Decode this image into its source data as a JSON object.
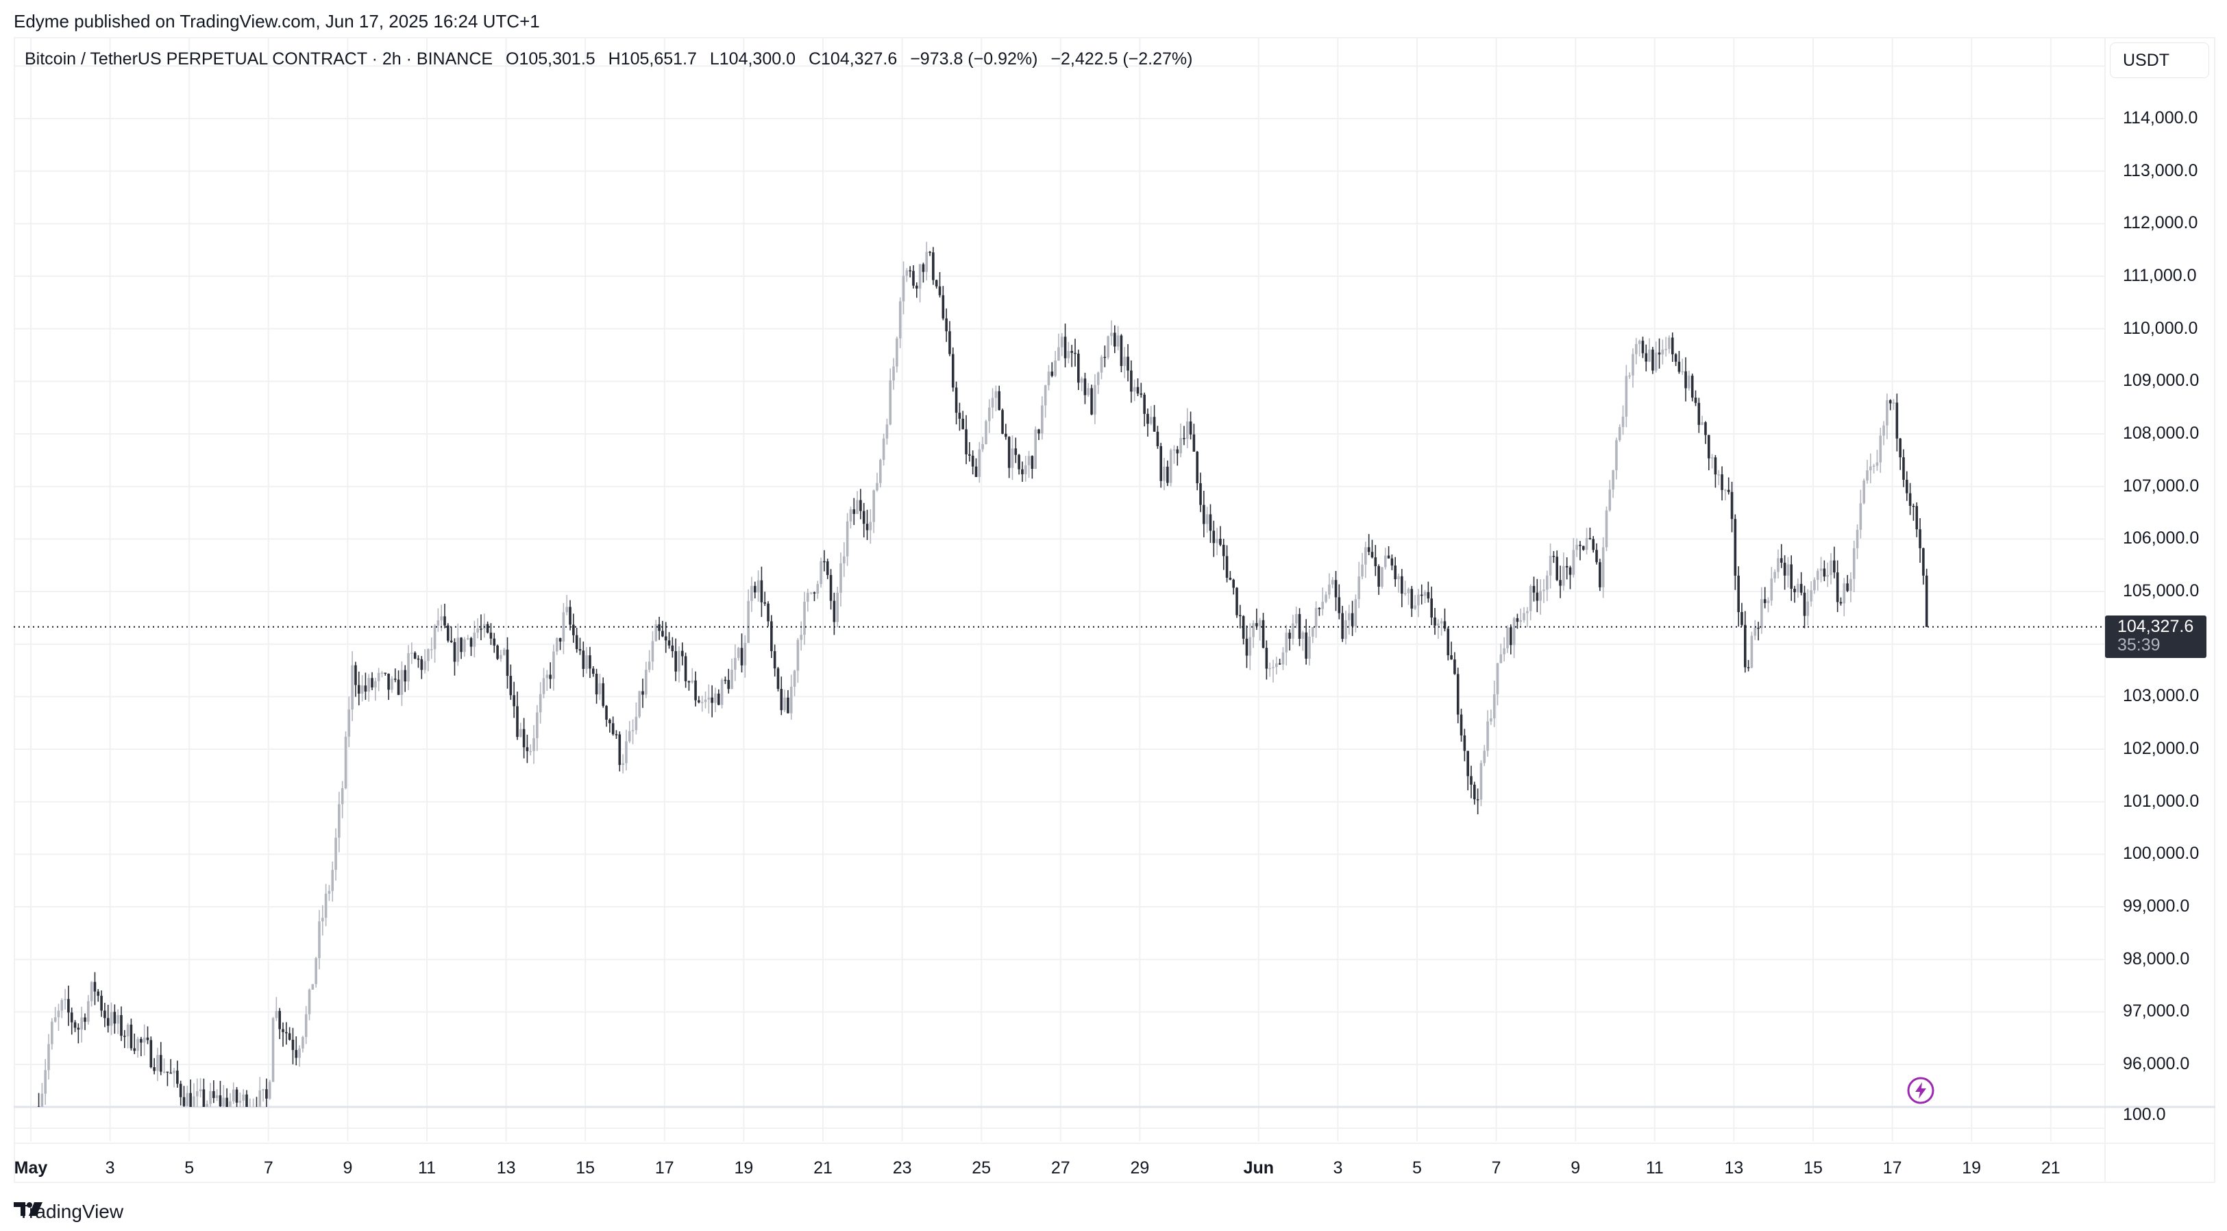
{
  "publisher": "Edyme published on TradingView.com, Jun 17, 2025 16:24 UTC+1",
  "legend": {
    "symbol": "Bitcoin / TetherUS PERPETUAL CONTRACT · 2h · BINANCE",
    "open": "O105,301.5",
    "high": "H105,651.7",
    "low": "L104,300.0",
    "close": "C104,327.6",
    "change": "−973.8 (−0.92%)",
    "change_extra": "−2,422.5 (−2.27%)"
  },
  "currency": "USDT",
  "price_axis": {
    "labels": [
      "114,000.0",
      "113,000.0",
      "112,000.0",
      "111,000.0",
      "110,000.0",
      "109,000.0",
      "108,000.0",
      "107,000.0",
      "106,000.0",
      "105,000.0",
      "103,000.0",
      "102,000.0",
      "101,000.0",
      "100,000.0",
      "99,000.0",
      "98,000.0",
      "97,000.0",
      "96,000.0"
    ],
    "values": [
      114000,
      113000,
      112000,
      111000,
      110000,
      109000,
      108000,
      107000,
      106000,
      105000,
      103000,
      102000,
      101000,
      100000,
      99000,
      98000,
      97000,
      96000
    ],
    "last_price": "104,327.6",
    "countdown": "35:39",
    "lower_pane_label": "100.0"
  },
  "time_axis": {
    "labels": [
      "May",
      "3",
      "5",
      "7",
      "9",
      "11",
      "13",
      "15",
      "17",
      "19",
      "21",
      "23",
      "25",
      "27",
      "29",
      "Jun",
      "3",
      "5",
      "7",
      "9",
      "11",
      "13",
      "15",
      "17",
      "19",
      "21"
    ],
    "day_offsets": [
      0,
      2,
      4,
      6,
      8,
      10,
      12,
      14,
      16,
      18,
      20,
      22,
      24,
      26,
      28,
      31,
      33,
      35,
      37,
      39,
      41,
      43,
      45,
      47,
      49,
      51
    ],
    "month_labels": [
      "May",
      "Jun"
    ]
  },
  "footer": {
    "brand": "TradingView"
  },
  "icons": {
    "lightning": "lightning-icon",
    "logo": "tradingview-logo-icon"
  },
  "colors": {
    "up": "#b2b5be",
    "down": "#2a2e39",
    "grid": "#f0f1f3",
    "accent_purple": "#9c27b0",
    "price_tag_bg": "#2a2e39"
  },
  "chart_data": {
    "type": "candlestick",
    "title": "Bitcoin / TetherUS PERPETUAL CONTRACT · 2h · BINANCE",
    "xlabel": "",
    "ylabel": "USDT",
    "ylim": [
      95300,
      115000
    ],
    "interval": "2h",
    "grid": true,
    "last_price": 104327.6,
    "ohlc_last": {
      "open": 105301.5,
      "high": 105651.7,
      "low": 104300.0,
      "close": 104327.6
    },
    "waypoints_day_price": [
      [
        0.2,
        95200
      ],
      [
        0.5,
        96600
      ],
      [
        0.8,
        97100
      ],
      [
        1.2,
        96700
      ],
      [
        1.6,
        97500
      ],
      [
        1.9,
        96900
      ],
      [
        2.4,
        96600
      ],
      [
        2.9,
        96300
      ],
      [
        3.4,
        95900
      ],
      [
        3.7,
        95600
      ],
      [
        4.0,
        95300
      ],
      [
        6.0,
        95300
      ],
      [
        6.1,
        97100
      ],
      [
        6.4,
        96700
      ],
      [
        6.7,
        96300
      ],
      [
        7.0,
        97000
      ],
      [
        7.3,
        98600
      ],
      [
        7.6,
        99600
      ],
      [
        7.9,
        101500
      ],
      [
        8.1,
        103500
      ],
      [
        8.4,
        103100
      ],
      [
        8.8,
        103300
      ],
      [
        9.2,
        103100
      ],
      [
        9.6,
        103700
      ],
      [
        10.0,
        103600
      ],
      [
        10.3,
        104500
      ],
      [
        10.6,
        103800
      ],
      [
        11.0,
        104100
      ],
      [
        11.3,
        104300
      ],
      [
        11.6,
        104000
      ],
      [
        12.0,
        103800
      ],
      [
        12.3,
        102400
      ],
      [
        12.6,
        102000
      ],
      [
        12.9,
        103000
      ],
      [
        13.2,
        103700
      ],
      [
        13.5,
        104600
      ],
      [
        13.9,
        103700
      ],
      [
        14.2,
        103400
      ],
      [
        14.6,
        102600
      ],
      [
        14.9,
        101800
      ],
      [
        15.2,
        102300
      ],
      [
        15.5,
        103300
      ],
      [
        15.8,
        104200
      ],
      [
        16.1,
        103900
      ],
      [
        16.5,
        103500
      ],
      [
        16.8,
        103000
      ],
      [
        17.2,
        102900
      ],
      [
        17.6,
        103300
      ],
      [
        18.0,
        103900
      ],
      [
        18.2,
        105300
      ],
      [
        18.5,
        104900
      ],
      [
        18.8,
        103200
      ],
      [
        19.1,
        102600
      ],
      [
        19.4,
        104300
      ],
      [
        19.7,
        105000
      ],
      [
        20.0,
        105600
      ],
      [
        20.3,
        104400
      ],
      [
        20.6,
        106200
      ],
      [
        20.9,
        106700
      ],
      [
        21.2,
        106300
      ],
      [
        21.5,
        107800
      ],
      [
        21.8,
        109400
      ],
      [
        22.0,
        111200
      ],
      [
        22.3,
        110900
      ],
      [
        22.6,
        111400
      ],
      [
        22.9,
        110900
      ],
      [
        23.2,
        109300
      ],
      [
        23.5,
        108000
      ],
      [
        23.8,
        107200
      ],
      [
        24.1,
        108200
      ],
      [
        24.4,
        108700
      ],
      [
        24.7,
        107600
      ],
      [
        25.0,
        107200
      ],
      [
        25.3,
        107600
      ],
      [
        25.6,
        108700
      ],
      [
        25.9,
        109600
      ],
      [
        26.2,
        109700
      ],
      [
        26.5,
        109100
      ],
      [
        26.8,
        108500
      ],
      [
        27.1,
        109500
      ],
      [
        27.4,
        109900
      ],
      [
        27.7,
        109000
      ],
      [
        28.0,
        108600
      ],
      [
        28.3,
        108200
      ],
      [
        28.6,
        107100
      ],
      [
        28.9,
        107700
      ],
      [
        29.2,
        108300
      ],
      [
        29.5,
        106800
      ],
      [
        29.8,
        106100
      ],
      [
        30.1,
        105700
      ],
      [
        30.4,
        104900
      ],
      [
        30.7,
        104000
      ],
      [
        31.0,
        104400
      ],
      [
        31.3,
        103300
      ],
      [
        31.6,
        103800
      ],
      [
        31.9,
        104600
      ],
      [
        32.2,
        103900
      ],
      [
        32.5,
        104600
      ],
      [
        32.8,
        105200
      ],
      [
        33.1,
        104200
      ],
      [
        33.4,
        104600
      ],
      [
        33.7,
        105800
      ],
      [
        34.0,
        105300
      ],
      [
        34.3,
        105600
      ],
      [
        34.6,
        105000
      ],
      [
        34.9,
        104700
      ],
      [
        35.2,
        104800
      ],
      [
        35.5,
        104400
      ],
      [
        35.8,
        103900
      ],
      [
        36.1,
        102600
      ],
      [
        36.4,
        101000
      ],
      [
        36.6,
        101400
      ],
      [
        36.9,
        103000
      ],
      [
        37.2,
        104000
      ],
      [
        37.5,
        104400
      ],
      [
        37.8,
        104800
      ],
      [
        38.1,
        105100
      ],
      [
        38.4,
        105500
      ],
      [
        38.7,
        105300
      ],
      [
        39.0,
        105600
      ],
      [
        39.3,
        106100
      ],
      [
        39.6,
        105200
      ],
      [
        39.9,
        107300
      ],
      [
        40.2,
        108500
      ],
      [
        40.5,
        109900
      ],
      [
        40.8,
        109500
      ],
      [
        41.1,
        109300
      ],
      [
        41.4,
        109700
      ],
      [
        41.7,
        109200
      ],
      [
        42.0,
        108600
      ],
      [
        42.3,
        107800
      ],
      [
        42.6,
        107100
      ],
      [
        42.9,
        106600
      ],
      [
        43.1,
        104800
      ],
      [
        43.3,
        103600
      ],
      [
        43.6,
        104500
      ],
      [
        43.9,
        105100
      ],
      [
        44.2,
        105600
      ],
      [
        44.5,
        105100
      ],
      [
        44.8,
        104600
      ],
      [
        45.1,
        105300
      ],
      [
        45.4,
        105500
      ],
      [
        45.7,
        104800
      ],
      [
        46.0,
        105500
      ],
      [
        46.3,
        107000
      ],
      [
        46.6,
        107300
      ],
      [
        46.9,
        108700
      ],
      [
        47.1,
        108200
      ],
      [
        47.3,
        107300
      ],
      [
        47.5,
        106600
      ],
      [
        47.7,
        105700
      ],
      [
        47.9,
        104330
      ]
    ]
  }
}
